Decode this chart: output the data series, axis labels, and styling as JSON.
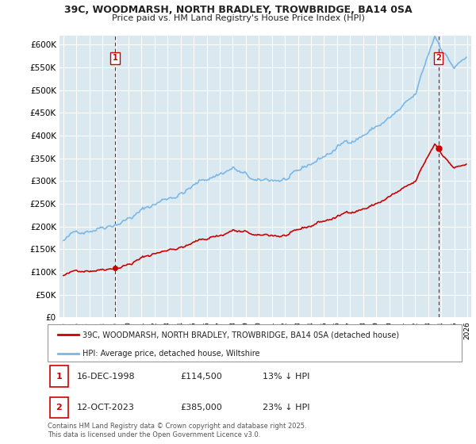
{
  "title": "39C, WOODMARSH, NORTH BRADLEY, TROWBRIDGE, BA14 0SA",
  "subtitle": "Price paid vs. HM Land Registry's House Price Index (HPI)",
  "ylim": [
    0,
    620000
  ],
  "yticks": [
    0,
    50000,
    100000,
    150000,
    200000,
    250000,
    300000,
    350000,
    400000,
    450000,
    500000,
    550000,
    600000
  ],
  "xlim": [
    1994.7,
    2026.3
  ],
  "xticks": [
    1995,
    1996,
    1997,
    1998,
    1999,
    2000,
    2001,
    2002,
    2003,
    2004,
    2005,
    2006,
    2007,
    2008,
    2009,
    2010,
    2011,
    2012,
    2013,
    2014,
    2015,
    2016,
    2017,
    2018,
    2019,
    2020,
    2021,
    2022,
    2023,
    2024,
    2025,
    2026
  ],
  "sale1_x": 1998.96,
  "sale1_y": 114500,
  "sale2_x": 2023.78,
  "sale2_y": 385000,
  "hpi_color": "#7ab8e8",
  "price_color": "#cc0000",
  "legend_label1": "39C, WOODMARSH, NORTH BRADLEY, TROWBRIDGE, BA14 0SA (detached house)",
  "legend_label2": "HPI: Average price, detached house, Wiltshire",
  "table_row1": [
    "1",
    "16-DEC-1998",
    "£114,500",
    "13% ↓ HPI"
  ],
  "table_row2": [
    "2",
    "12-OCT-2023",
    "£385,000",
    "23% ↓ HPI"
  ],
  "footnote": "Contains HM Land Registry data © Crown copyright and database right 2025.\nThis data is licensed under the Open Government Licence v3.0.",
  "background_color": "#ffffff",
  "plot_bg_color": "#dae8f0",
  "grid_color": "#ffffff"
}
